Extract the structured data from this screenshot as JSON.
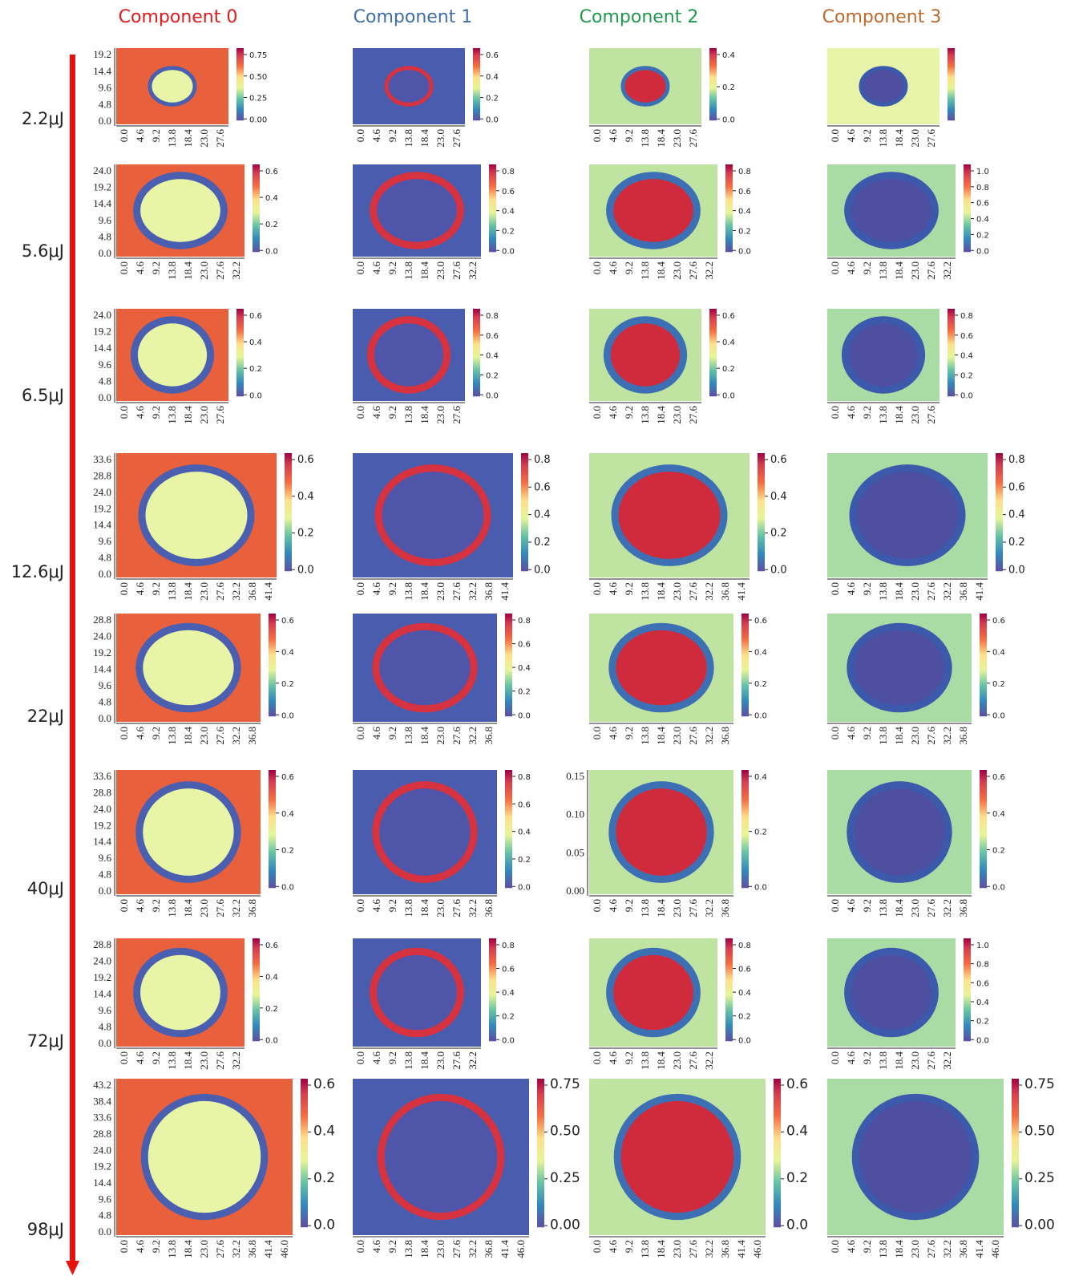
{
  "columns": [
    {
      "title": "Component 0",
      "color": "#e31a1c"
    },
    {
      "title": "Component 1",
      "color": "#3f6fa8"
    },
    {
      "title": "Component 2",
      "color": "#1f9a4c"
    },
    {
      "title": "Component 3",
      "color": "#c0692a"
    }
  ],
  "rows": [
    {
      "label": "2.2μJ",
      "panels": [
        {
          "yticks": [
            "19.2",
            "14.4",
            "9.6",
            "4.8",
            "0.0"
          ],
          "xticks": [
            "0.0",
            "4.6",
            "9.2",
            "13.8",
            "18.4",
            "23.0",
            "27.6"
          ],
          "cbar": [
            "0.75",
            "0.50",
            "0.25",
            "0.00"
          ]
        },
        {
          "yticks": [],
          "xticks": [
            "0.0",
            "4.6",
            "9.2",
            "13.8",
            "18.4",
            "23.0",
            "27.6"
          ],
          "cbar": [
            "0.6",
            "0.4",
            "0.2",
            "0.0"
          ]
        },
        {
          "yticks": [],
          "xticks": [
            "0.0",
            "4.6",
            "9.2",
            "13.8",
            "18.4",
            "23.0",
            "27.6"
          ],
          "cbar": [
            "0.4",
            "0.2",
            "0.0"
          ]
        },
        {
          "yticks": [],
          "xticks": [
            "0.0",
            "4.6",
            "9.2",
            "13.8",
            "18.4",
            "23.0",
            "27.6"
          ],
          "cbar": []
        }
      ]
    },
    {
      "label": "5.6μJ",
      "panels": [
        {
          "yticks": [
            "24.0",
            "19.2",
            "14.4",
            "9.6",
            "4.8",
            "0.0"
          ],
          "xticks": [
            "0.0",
            "4.6",
            "9.2",
            "13.8",
            "18.4",
            "23.0",
            "27.6",
            "32.2"
          ],
          "cbar": [
            "0.6",
            "0.4",
            "0.2",
            "0.0"
          ]
        },
        {
          "yticks": [],
          "xticks": [
            "0.0",
            "4.6",
            "9.2",
            "13.8",
            "18.4",
            "23.0",
            "27.6",
            "32.2"
          ],
          "cbar": [
            "0.8",
            "0.6",
            "0.4",
            "0.2",
            "0.0"
          ]
        },
        {
          "yticks": [],
          "xticks": [
            "0.0",
            "4.6",
            "9.2",
            "13.8",
            "18.4",
            "23.0",
            "27.6",
            "32.2"
          ],
          "cbar": [
            "0.8",
            "0.6",
            "0.4",
            "0.2",
            "0.0"
          ]
        },
        {
          "yticks": [],
          "xticks": [
            "0.0",
            "4.6",
            "9.2",
            "13.8",
            "18.4",
            "23.0",
            "27.6",
            "32.2"
          ],
          "cbar": [
            "1.0",
            "0.8",
            "0.6",
            "0.4",
            "0.2",
            "0.0"
          ]
        }
      ]
    },
    {
      "label": "6.5μJ",
      "panels": [
        {
          "yticks": [
            "24.0",
            "19.2",
            "14.4",
            "9.6",
            "4.8",
            "0.0"
          ],
          "xticks": [
            "0.0",
            "4.6",
            "9.2",
            "13.8",
            "18.4",
            "23.0",
            "27.6"
          ],
          "cbar": [
            "0.6",
            "0.4",
            "0.2",
            "0.0"
          ]
        },
        {
          "yticks": [],
          "xticks": [
            "0.0",
            "4.6",
            "9.2",
            "13.8",
            "18.4",
            "23.0",
            "27.6"
          ],
          "cbar": [
            "0.8",
            "0.6",
            "0.4",
            "0.2",
            "0.0"
          ]
        },
        {
          "yticks": [],
          "xticks": [
            "0.0",
            "4.6",
            "9.2",
            "13.8",
            "18.4",
            "23.0",
            "27.6"
          ],
          "cbar": [
            "0.6",
            "0.4",
            "0.2",
            "0.0"
          ]
        },
        {
          "yticks": [],
          "xticks": [
            "0.0",
            "4.6",
            "9.2",
            "13.8",
            "18.4",
            "23.0",
            "27.6"
          ],
          "cbar": [
            "0.8",
            "0.6",
            "0.4",
            "0.2",
            "0.0"
          ]
        }
      ]
    },
    {
      "label": "12.6μJ",
      "panels": [
        {
          "yticks": [
            "33.6",
            "28.8",
            "24.0",
            "19.2",
            "14.4",
            "9.6",
            "4.8",
            "0.0"
          ],
          "xticks": [
            "0.0",
            "4.6",
            "9.2",
            "13.8",
            "18.4",
            "23.0",
            "27.6",
            "32.2",
            "36.8",
            "41.4"
          ],
          "cbar": [
            "0.6",
            "0.4",
            "0.2",
            "0.0"
          ]
        },
        {
          "yticks": [],
          "xticks": [
            "0.0",
            "4.6",
            "9.2",
            "13.8",
            "18.4",
            "23.0",
            "27.6",
            "32.2",
            "36.8",
            "41.4"
          ],
          "cbar": [
            "0.8",
            "0.6",
            "0.4",
            "0.2",
            "0.0"
          ]
        },
        {
          "yticks": [],
          "xticks": [
            "0.0",
            "4.6",
            "9.2",
            "13.8",
            "18.4",
            "23.0",
            "27.6",
            "32.2",
            "36.8",
            "41.4"
          ],
          "cbar": [
            "0.6",
            "0.4",
            "0.2",
            "0.0"
          ]
        },
        {
          "yticks": [],
          "xticks": [
            "0.0",
            "4.6",
            "9.2",
            "13.8",
            "18.4",
            "23.0",
            "27.6",
            "32.2",
            "36.8",
            "41.4"
          ],
          "cbar": [
            "0.8",
            "0.6",
            "0.4",
            "0.2",
            "0.0"
          ]
        }
      ]
    },
    {
      "label": "22μJ",
      "panels": [
        {
          "yticks": [
            "28.8",
            "24.0",
            "19.2",
            "14.4",
            "9.6",
            "4.8",
            "0.0"
          ],
          "xticks": [
            "0.0",
            "4.6",
            "9.2",
            "13.8",
            "18.4",
            "23.0",
            "27.6",
            "32.2",
            "36.8"
          ],
          "cbar": [
            "0.6",
            "0.4",
            "0.2",
            "0.0"
          ]
        },
        {
          "yticks": [],
          "xticks": [
            "0.0",
            "4.6",
            "9.2",
            "13.8",
            "18.4",
            "23.0",
            "27.6",
            "32.2",
            "36.8"
          ],
          "cbar": [
            "0.8",
            "0.6",
            "0.4",
            "0.2",
            "0.0"
          ]
        },
        {
          "yticks": [],
          "xticks": [
            "0.0",
            "4.6",
            "9.2",
            "13.8",
            "18.4",
            "23.0",
            "27.6",
            "32.2",
            "36.8"
          ],
          "cbar": [
            "0.6",
            "0.4",
            "0.2",
            "0.0"
          ]
        },
        {
          "yticks": [],
          "xticks": [
            "0.0",
            "4.6",
            "9.2",
            "13.8",
            "18.4",
            "23.0",
            "27.6",
            "32.2",
            "36.8"
          ],
          "cbar": [
            "0.6",
            "0.4",
            "0.2",
            "0.0"
          ]
        }
      ]
    },
    {
      "label": "40μJ",
      "panels": [
        {
          "yticks": [
            "33.6",
            "28.8",
            "24.0",
            "19.2",
            "14.4",
            "9.6",
            "4.8",
            "0.0"
          ],
          "xticks": [
            "0.0",
            "4.6",
            "9.2",
            "13.8",
            "18.4",
            "23.0",
            "27.6",
            "32.2",
            "36.8"
          ],
          "cbar": [
            "0.6",
            "0.4",
            "0.2",
            "0.0"
          ]
        },
        {
          "yticks": [],
          "xticks": [
            "0.0",
            "4.6",
            "9.2",
            "13.8",
            "18.4",
            "23.0",
            "27.6",
            "32.2",
            "36.8"
          ],
          "cbar": [
            "0.8",
            "0.6",
            "0.4",
            "0.2",
            "0.0"
          ]
        },
        {
          "yticks": [
            "0.15",
            "0.10",
            "0.05",
            "0.00"
          ],
          "xticks": [
            "0.0",
            "4.6",
            "9.2",
            "13.8",
            "18.4",
            "23.0",
            "27.6",
            "32.2",
            "36.8"
          ],
          "cbar": [
            "0.4",
            "0.2",
            "0.0"
          ]
        },
        {
          "yticks": [],
          "xticks": [
            "0.0",
            "4.6",
            "9.2",
            "13.8",
            "18.4",
            "23.0",
            "27.6",
            "32.2",
            "36.8"
          ],
          "cbar": [
            "0.6",
            "0.4",
            "0.2",
            "0.0"
          ]
        }
      ]
    },
    {
      "label": "72μJ",
      "panels": [
        {
          "yticks": [
            "28.8",
            "24.0",
            "19.2",
            "14.4",
            "9.6",
            "4.8",
            "0.0"
          ],
          "xticks": [
            "0.0",
            "4.6",
            "9.2",
            "13.8",
            "18.4",
            "23.0",
            "27.6",
            "32.2"
          ],
          "cbar": [
            "0.6",
            "0.4",
            "0.2",
            "0.0"
          ]
        },
        {
          "yticks": [],
          "xticks": [
            "0.0",
            "4.6",
            "9.2",
            "13.8",
            "18.4",
            "23.0",
            "27.6",
            "32.2"
          ],
          "cbar": [
            "0.8",
            "0.6",
            "0.4",
            "0.2",
            "0.0"
          ]
        },
        {
          "yticks": [],
          "xticks": [
            "0.0",
            "4.6",
            "9.2",
            "13.8",
            "18.4",
            "23.0",
            "27.6",
            "32.2"
          ],
          "cbar": [
            "0.8",
            "0.6",
            "0.4",
            "0.2",
            "0.0"
          ]
        },
        {
          "yticks": [],
          "xticks": [
            "0.0",
            "4.6",
            "9.2",
            "13.8",
            "18.4",
            "23.0",
            "27.6",
            "32.2"
          ],
          "cbar": [
            "1.0",
            "0.8",
            "0.6",
            "0.4",
            "0.2",
            "0.0"
          ]
        }
      ]
    },
    {
      "label": "98μJ",
      "panels": [
        {
          "yticks": [
            "43.2",
            "38.4",
            "33.6",
            "28.8",
            "24.0",
            "19.2",
            "14.4",
            "9.6",
            "4.8",
            "0.0"
          ],
          "xticks": [
            "0.0",
            "4.6",
            "9.2",
            "13.8",
            "18.4",
            "23.0",
            "27.6",
            "32.2",
            "36.8",
            "41.4",
            "46.0"
          ],
          "cbar": [
            "0.6",
            "0.4",
            "0.2",
            "0.0"
          ]
        },
        {
          "yticks": [],
          "xticks": [
            "0.0",
            "4.6",
            "9.2",
            "13.8",
            "18.4",
            "23.0",
            "27.6",
            "32.2",
            "36.8",
            "41.4",
            "46.0"
          ],
          "cbar": [
            "0.75",
            "0.50",
            "0.25",
            "0.00"
          ]
        },
        {
          "yticks": [],
          "xticks": [
            "0.0",
            "4.6",
            "9.2",
            "13.8",
            "18.4",
            "23.0",
            "27.6",
            "32.2",
            "36.8",
            "41.4",
            "46.0"
          ],
          "cbar": [
            "0.6",
            "0.4",
            "0.2",
            "0.0"
          ]
        },
        {
          "yticks": [],
          "xticks": [
            "0.0",
            "4.6",
            "9.2",
            "13.8",
            "18.4",
            "23.0",
            "27.6",
            "32.2",
            "36.8",
            "41.4",
            "46.0"
          ],
          "cbar": [
            "0.75",
            "0.50",
            "0.25",
            "0.00"
          ]
        }
      ]
    }
  ]
}
